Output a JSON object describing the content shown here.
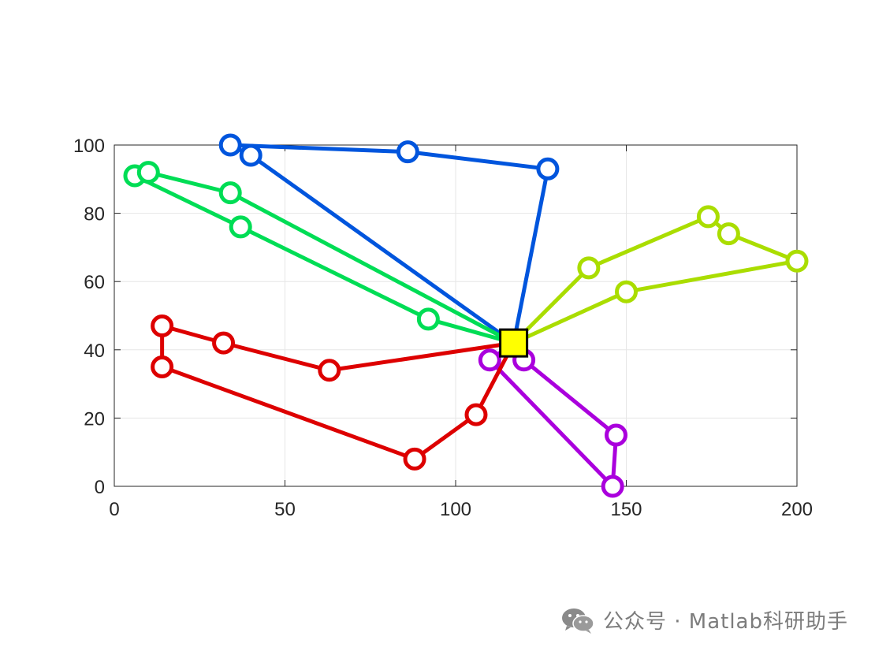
{
  "chart_data": {
    "type": "line",
    "title": "",
    "xlabel": "",
    "ylabel": "",
    "xlim": [
      0,
      200
    ],
    "ylim": [
      0,
      100
    ],
    "xticks": [
      0,
      50,
      100,
      150,
      200
    ],
    "yticks": [
      0,
      20,
      40,
      60,
      80,
      100
    ],
    "grid": true,
    "depot": {
      "x": 117,
      "y": 42,
      "color": "#FFFF00"
    },
    "series": [
      {
        "color": "#0055DD",
        "x": [
          117,
          127,
          86,
          34,
          40,
          117
        ],
        "y": [
          42,
          93,
          98,
          100,
          97,
          42
        ]
      },
      {
        "color": "#00DD55",
        "x": [
          117,
          92,
          37,
          6,
          10,
          34,
          117
        ],
        "y": [
          42,
          49,
          76,
          91,
          92,
          86,
          42
        ]
      },
      {
        "color": "#AADD00",
        "x": [
          117,
          139,
          174,
          180,
          200,
          150,
          117
        ],
        "y": [
          42,
          64,
          79,
          74,
          66,
          57,
          42
        ]
      },
      {
        "color": "#AA00DD",
        "x": [
          117,
          120,
          147,
          146,
          110,
          117
        ],
        "y": [
          42,
          37,
          15,
          0,
          37,
          42
        ]
      },
      {
        "color": "#DD0000",
        "x": [
          117,
          63,
          32,
          14,
          14,
          88,
          106,
          117
        ],
        "y": [
          42,
          34,
          42,
          47,
          35,
          8,
          21,
          42
        ]
      }
    ]
  },
  "watermark": {
    "icon": "wechat-icon",
    "text": "公众号 · Matlab科研助手"
  }
}
